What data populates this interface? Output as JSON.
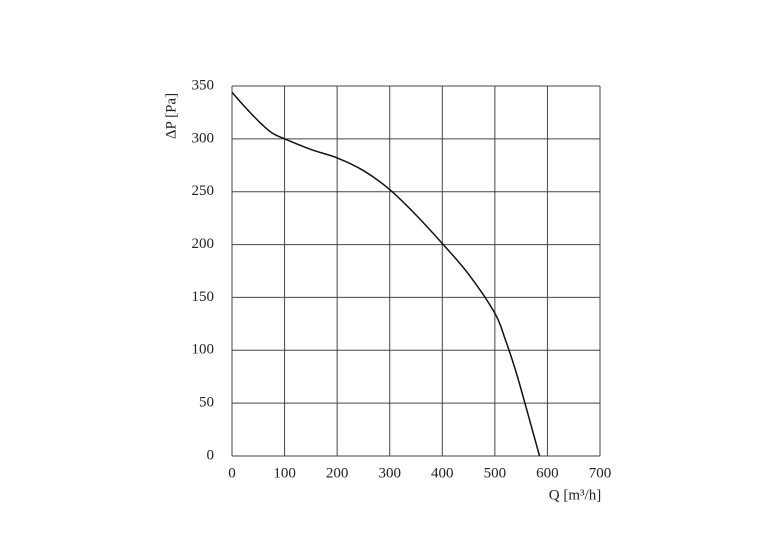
{
  "chart_data": {
    "type": "line",
    "x_label": "Q [m³/h]",
    "y_label": "ΔP [Pa]",
    "x": [
      0,
      25,
      50,
      75,
      100,
      150,
      200,
      250,
      300,
      350,
      400,
      450,
      500,
      520,
      540,
      560,
      575,
      585
    ],
    "values": [
      344,
      330,
      317,
      306,
      300,
      290,
      282,
      270,
      252,
      228,
      201,
      172,
      135,
      110,
      80,
      45,
      18,
      0
    ],
    "color": "#111111",
    "xlim": [
      0,
      700
    ],
    "xticks": [
      0,
      100,
      200,
      300,
      400,
      500,
      600,
      700
    ],
    "ylim": [
      0,
      350
    ],
    "yticks": [
      0,
      50,
      100,
      150,
      200,
      250,
      300,
      350
    ],
    "grid": true
  }
}
